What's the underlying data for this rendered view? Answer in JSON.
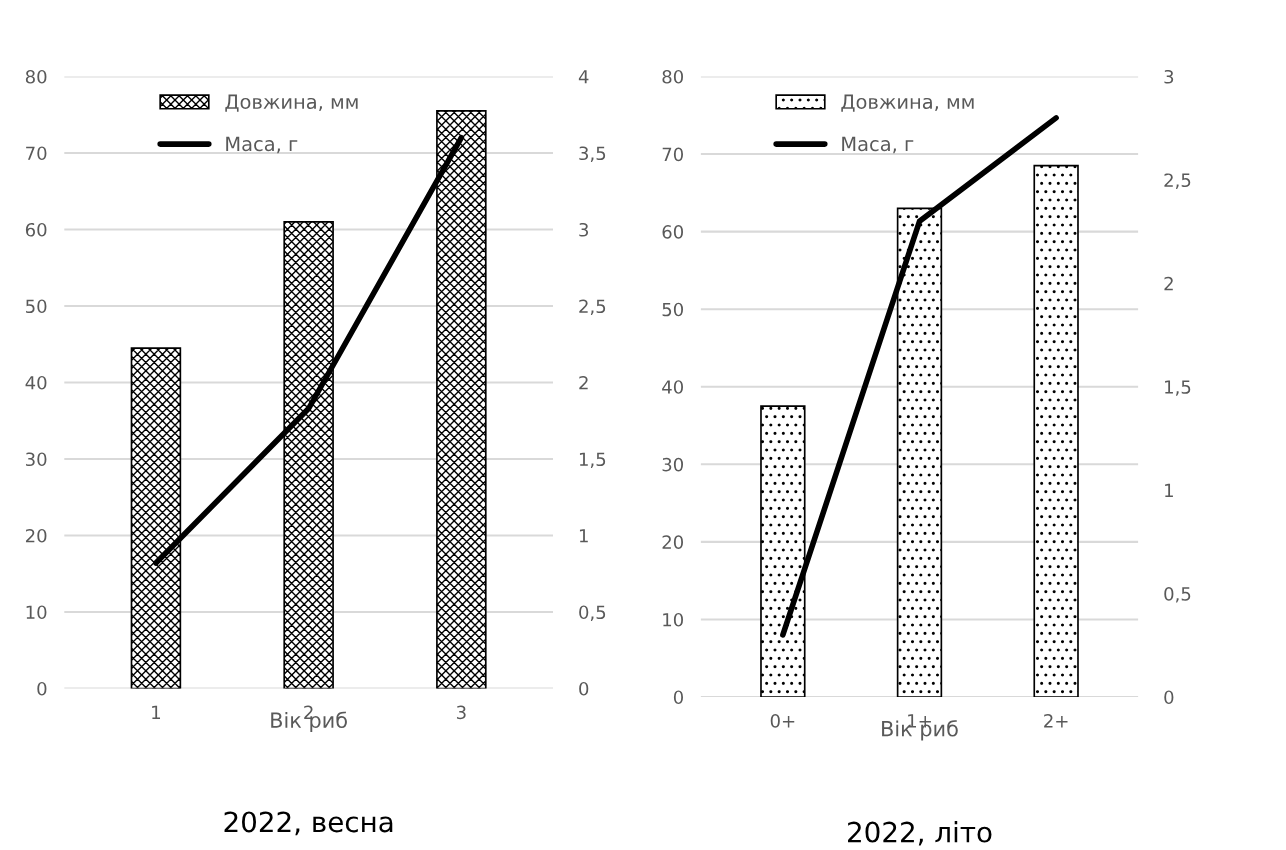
{
  "chart_data": [
    {
      "type": "bar",
      "title": "2022, весна",
      "xlabel": "Вік риб",
      "categories": [
        "1",
        "2",
        "3"
      ],
      "series": [
        {
          "name": "Довжина, мм",
          "color": "#000000",
          "values": [
            44.5,
            61,
            75.5
          ]
        },
        {
          "name": "Маса, г",
          "type": "line",
          "axis": "y2",
          "color": "#000000",
          "values": [
            0.82,
            1.83,
            3.6
          ]
        }
      ],
      "ylim": [
        0,
        80
      ],
      "yticks": [
        0,
        10,
        20,
        30,
        40,
        50,
        60,
        70,
        80
      ],
      "y2lim": [
        0,
        4
      ],
      "y2ticks": [
        {
          "value": 0,
          "label": "0"
        },
        {
          "value": 0.5,
          "label": "0,5"
        },
        {
          "value": 1,
          "label": "1"
        },
        {
          "value": 1.5,
          "label": "1,5"
        },
        {
          "value": 2,
          "label": "2"
        },
        {
          "value": 2.5,
          "label": "2,5"
        },
        {
          "value": 3,
          "label": "3"
        },
        {
          "value": 3.5,
          "label": "3,5"
        },
        {
          "value": 4,
          "label": "4"
        }
      ],
      "grid": "y",
      "legend": "top"
    },
    {
      "type": "bar",
      "title": "2022, літо",
      "xlabel": "Вік риб",
      "categories": [
        "0+",
        "1+",
        "2+"
      ],
      "series": [
        {
          "name": "Довжина, мм",
          "color": "#000000",
          "values": [
            37.5,
            63,
            68.5
          ]
        },
        {
          "name": "Маса, г",
          "type": "line",
          "axis": "y2",
          "color": "#000000",
          "values": [
            0.3,
            2.3,
            2.8
          ]
        }
      ],
      "ylim": [
        0,
        80
      ],
      "yticks": [
        0,
        10,
        20,
        30,
        40,
        50,
        60,
        70,
        80
      ],
      "y2lim": [
        0,
        3
      ],
      "y2ticks": [
        {
          "value": 0,
          "label": "0"
        },
        {
          "value": 0.5,
          "label": "0,5"
        },
        {
          "value": 1,
          "label": "1"
        },
        {
          "value": 1.5,
          "label": "1,5"
        },
        {
          "value": 2,
          "label": "2"
        },
        {
          "value": 2.5,
          "label": "2,5"
        },
        {
          "value": 3,
          "label": "3"
        }
      ],
      "grid": "y",
      "legend": "top"
    }
  ]
}
